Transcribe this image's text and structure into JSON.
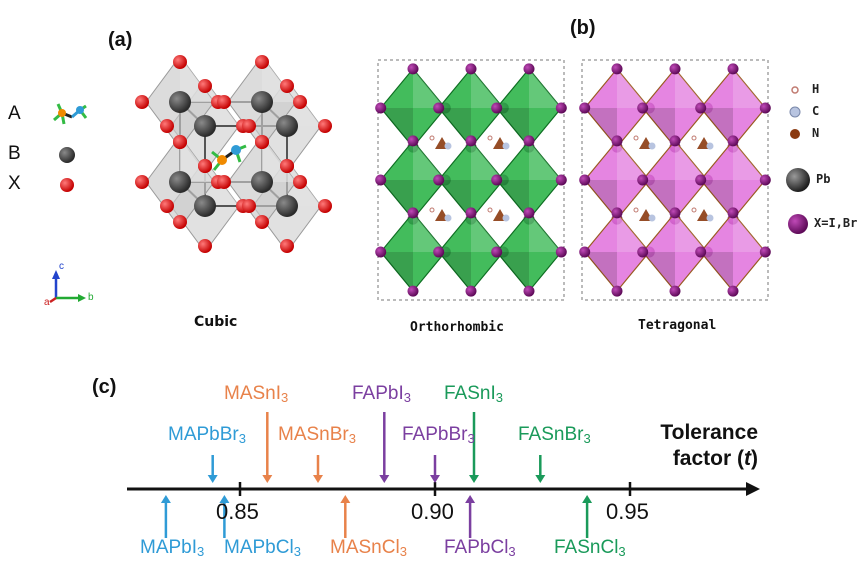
{
  "panel_a": {
    "label": "(a)",
    "legend": [
      {
        "key": "A",
        "color": "#2f9bd6"
      },
      {
        "key": "B",
        "color": "#111111"
      },
      {
        "key": "X",
        "color": "#e01010"
      }
    ],
    "caption": "Cubic",
    "axes": {
      "c": "c",
      "a": "a",
      "b": "b"
    }
  },
  "panel_b": {
    "label": "(b)",
    "captions": [
      "Orthorhombic",
      "Tetragonal"
    ],
    "legend": [
      {
        "key": "H",
        "color": "#e8b8b0"
      },
      {
        "key": "C",
        "color": "#b8c4e0"
      },
      {
        "key": "N",
        "color": "#8b3a10"
      },
      {
        "key": "Pb",
        "color": "#333333"
      },
      {
        "key": "X=I,Br",
        "color": "#8a1a80"
      }
    ],
    "colors": {
      "orthorhombic": "#22b040",
      "tetragonal": "#e070dc"
    }
  },
  "panel_c": {
    "label": "(c)",
    "axis_title_line1": "Tolerance",
    "axis_title_line2": "factor (",
    "axis_title_var": "t",
    "axis_title_end": ")",
    "ticks": [
      {
        "value": 0.85,
        "label": "0.85"
      },
      {
        "value": 0.9,
        "label": "0.90"
      },
      {
        "value": 0.95,
        "label": "0.95"
      }
    ],
    "compounds": [
      {
        "base": "MAPbBr",
        "sub": "3",
        "t": 0.843,
        "side": "above",
        "color": "#2f9bd6"
      },
      {
        "base": "MASnI",
        "sub": "3",
        "t": 0.857,
        "side": "above",
        "color": "#e8824a"
      },
      {
        "base": "MASnBr",
        "sub": "3",
        "t": 0.87,
        "side": "above",
        "color": "#e8824a"
      },
      {
        "base": "FAPbI",
        "sub": "3",
        "t": 0.887,
        "side": "above",
        "color": "#7b3fa0"
      },
      {
        "base": "FAPbBr",
        "sub": "3",
        "t": 0.9,
        "side": "above",
        "color": "#7b3fa0"
      },
      {
        "base": "FASnI",
        "sub": "3",
        "t": 0.91,
        "side": "above",
        "color": "#1a9a5a"
      },
      {
        "base": "FASnBr",
        "sub": "3",
        "t": 0.927,
        "side": "above",
        "color": "#1a9a5a"
      },
      {
        "base": "MAPbI",
        "sub": "3",
        "t": 0.831,
        "side": "below",
        "color": "#2f9bd6"
      },
      {
        "base": "MAPbCl",
        "sub": "3",
        "t": 0.846,
        "side": "below",
        "color": "#2f9bd6"
      },
      {
        "base": "MASnCl",
        "sub": "3",
        "t": 0.877,
        "side": "below",
        "color": "#e8824a"
      },
      {
        "base": "FAPbCl",
        "sub": "3",
        "t": 0.909,
        "side": "below",
        "color": "#7b3fa0"
      },
      {
        "base": "FASnCl",
        "sub": "3",
        "t": 0.939,
        "side": "below",
        "color": "#1a9a5a"
      }
    ]
  }
}
